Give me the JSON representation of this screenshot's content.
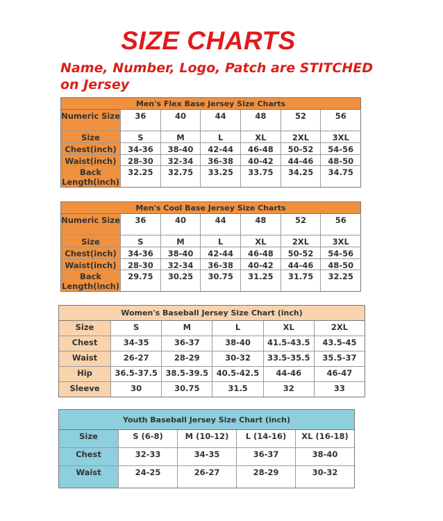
{
  "title": "SIZE CHARTS",
  "subtitle": "Name, Number, Logo, Patch are STITCHED on Jersey",
  "colors": {
    "title": "#e01b1b",
    "orange": "#f0913f",
    "peach": "#f9d3ad",
    "blue": "#8dcfdd"
  },
  "tables": [
    {
      "title": "Men's Flex Base Jersey Size Charts",
      "rows": [
        [
          "Numeric Size",
          "36",
          "40",
          "44",
          "48",
          "52",
          "56"
        ],
        [
          "Size",
          "S",
          "M",
          "L",
          "XL",
          "2XL",
          "3XL"
        ],
        [
          "Chest(inch)",
          "34-36",
          "38-40",
          "42-44",
          "46-48",
          "50-52",
          "54-56"
        ],
        [
          "Waist(inch)",
          "28-30",
          "32-34",
          "36-38",
          "40-42",
          "44-46",
          "48-50"
        ],
        [
          "Back Length(inch)",
          "32.25",
          "32.75",
          "33.25",
          "33.75",
          "34.25",
          "34.75"
        ]
      ]
    },
    {
      "title": "Men's Cool Base Jersey Size Charts",
      "rows": [
        [
          "Numeric Size",
          "36",
          "40",
          "44",
          "48",
          "52",
          "56"
        ],
        [
          "Size",
          "S",
          "M",
          "L",
          "XL",
          "2XL",
          "3XL"
        ],
        [
          "Chest(inch)",
          "34-36",
          "38-40",
          "42-44",
          "46-48",
          "50-52",
          "54-56"
        ],
        [
          "Waist(inch)",
          "28-30",
          "32-34",
          "36-38",
          "40-42",
          "44-46",
          "48-50"
        ],
        [
          "Back Length(inch)",
          "29.75",
          "30.25",
          "30.75",
          "31.25",
          "31.75",
          "32.25"
        ]
      ]
    },
    {
      "title": "Women's Baseball Jersey Size Chart (inch)",
      "rows": [
        [
          "Size",
          "S",
          "M",
          "L",
          "XL",
          "2XL"
        ],
        [
          "Chest",
          "34-35",
          "36-37",
          "38-40",
          "41.5-43.5",
          "43.5-45"
        ],
        [
          "Waist",
          "26-27",
          "28-29",
          "30-32",
          "33.5-35.5",
          "35.5-37"
        ],
        [
          "Hip",
          "36.5-37.5",
          "38.5-39.5",
          "40.5-42.5",
          "44-46",
          "46-47"
        ],
        [
          "Sleeve",
          "30",
          "30.75",
          "31.5",
          "32",
          "33"
        ]
      ]
    },
    {
      "title": "Youth Baseball Jersey Size Chart (inch)",
      "rows": [
        [
          "Size",
          "S (6-8)",
          "M (10-12)",
          "L (14-16)",
          "XL (16-18)"
        ],
        [
          "Chest",
          "32-33",
          "34-35",
          "36-37",
          "38-40"
        ],
        [
          "Waist",
          "24-25",
          "26-27",
          "28-29",
          "30-32"
        ]
      ]
    }
  ]
}
